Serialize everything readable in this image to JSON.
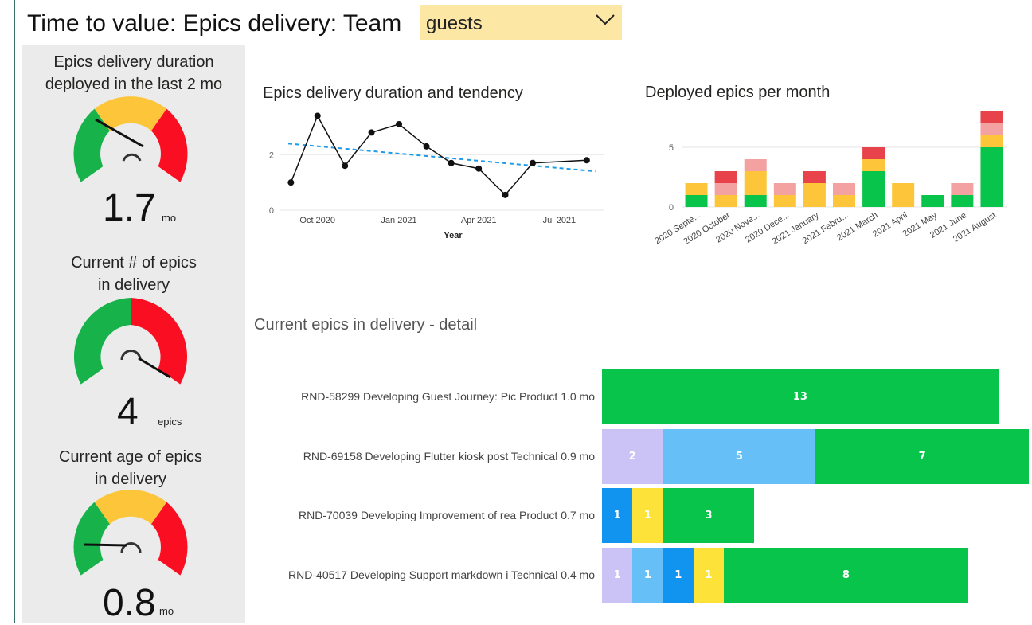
{
  "header": {
    "title": "Time to value: Epics delivery: Team",
    "team_value": "guests",
    "colors": {
      "dropdown_bg": "#fde7a4"
    }
  },
  "kpis": {
    "duration": {
      "title_line1": "Epics delivery duration",
      "title_line2": "deployed in the last 2 mo",
      "value": "1.7",
      "unit": "mo"
    },
    "current_count": {
      "title_line1": "Current # of epics",
      "title_line2": "in delivery",
      "value": "4",
      "unit": "epics"
    },
    "current_age": {
      "title_line1": "Current age of epics",
      "title_line2": "in delivery",
      "value": "0.8",
      "unit": "mo"
    },
    "colors": {
      "green": "#17b24a",
      "amber": "#fdc63a",
      "red": "#fa0f22"
    }
  },
  "charts_titles": {
    "line": "Epics delivery duration and tendency",
    "bar": "Deployed epics per month",
    "detail": "Current epics in delivery - detail"
  },
  "chart_data": [
    {
      "type": "line",
      "title": "Epics delivery duration and tendency",
      "xlabel": "Year",
      "ylabel": "",
      "x_ticks": [
        "Oct 2020",
        "Jan 2021",
        "Apr 2021",
        "Jul 2021"
      ],
      "y_ticks": [
        "0",
        "2"
      ],
      "ylim": [
        0,
        3.5
      ],
      "series": [
        {
          "x": [
            "2020-09-01",
            "2020-10-01",
            "2020-11-01",
            "2020-12-01",
            "2021-01-01",
            "2021-02-01",
            "2021-03-01",
            "2021-04-01",
            "2021-05-01",
            "2021-06-01",
            "2021-08-01"
          ],
          "values": [
            1.0,
            3.4,
            1.6,
            2.8,
            3.1,
            2.3,
            1.7,
            1.5,
            0.55,
            1.7,
            1.8
          ]
        }
      ],
      "trend": {
        "start": 2.4,
        "end": 1.4
      },
      "colors": {
        "line": "#111111",
        "trend": "#1e9be8"
      }
    },
    {
      "type": "bar",
      "stacked": true,
      "title": "Deployed epics per month",
      "categories": [
        "2020 Septe...",
        "2020 October",
        "2020 Nove...",
        "2020 Dece...",
        "2021 January",
        "2021 Febru...",
        "2021 March",
        "2021 April",
        "2021 May",
        "2021 June",
        "2021 August"
      ],
      "y_ticks": [
        "0",
        "5"
      ],
      "ylim": [
        0,
        8
      ],
      "series": [
        {
          "color": "#09c44a",
          "values": [
            1,
            0,
            1,
            0,
            0,
            0,
            3,
            0,
            1,
            1,
            5
          ]
        },
        {
          "color": "#fdc63a",
          "values": [
            1,
            1,
            2,
            1,
            2,
            1,
            1,
            2,
            0,
            0,
            1
          ]
        },
        {
          "color": "#f3a1a1",
          "values": [
            0,
            1,
            1,
            1,
            0,
            1,
            0,
            0,
            0,
            1,
            1
          ]
        },
        {
          "color": "#e8434a",
          "values": [
            0,
            1,
            0,
            0,
            1,
            0,
            1,
            0,
            0,
            0,
            1
          ]
        }
      ]
    },
    {
      "type": "bar",
      "orientation": "horizontal",
      "stacked": true,
      "title": "Current epics in delivery - detail",
      "categories": [
        "RND-58299 Developing Guest Journey: Pic Product 1.0 mo",
        "RND-69158 Developing Flutter kiosk post Technical 0.9 mo",
        "RND-70039 Developing Improvement of rea Product 0.7 mo",
        "RND-40517 Developing Support markdown i Technical 0.4 mo"
      ],
      "rows": [
        [
          {
            "value": 13,
            "color": "#09c44a"
          }
        ],
        [
          {
            "value": 2,
            "color": "#cbc3f5"
          },
          {
            "value": 5,
            "color": "#67bff8"
          },
          {
            "value": 7,
            "color": "#09c44a"
          }
        ],
        [
          {
            "value": 1,
            "color": "#1193f0"
          },
          {
            "value": 1,
            "color": "#fde23a"
          },
          {
            "value": 3,
            "color": "#09c44a"
          }
        ],
        [
          {
            "value": 1,
            "color": "#cbc3f5"
          },
          {
            "value": 1,
            "color": "#67bff8"
          },
          {
            "value": 1,
            "color": "#1193f0"
          },
          {
            "value": 1,
            "color": "#fde23a"
          },
          {
            "value": 8,
            "color": "#09c44a"
          }
        ]
      ]
    }
  ]
}
